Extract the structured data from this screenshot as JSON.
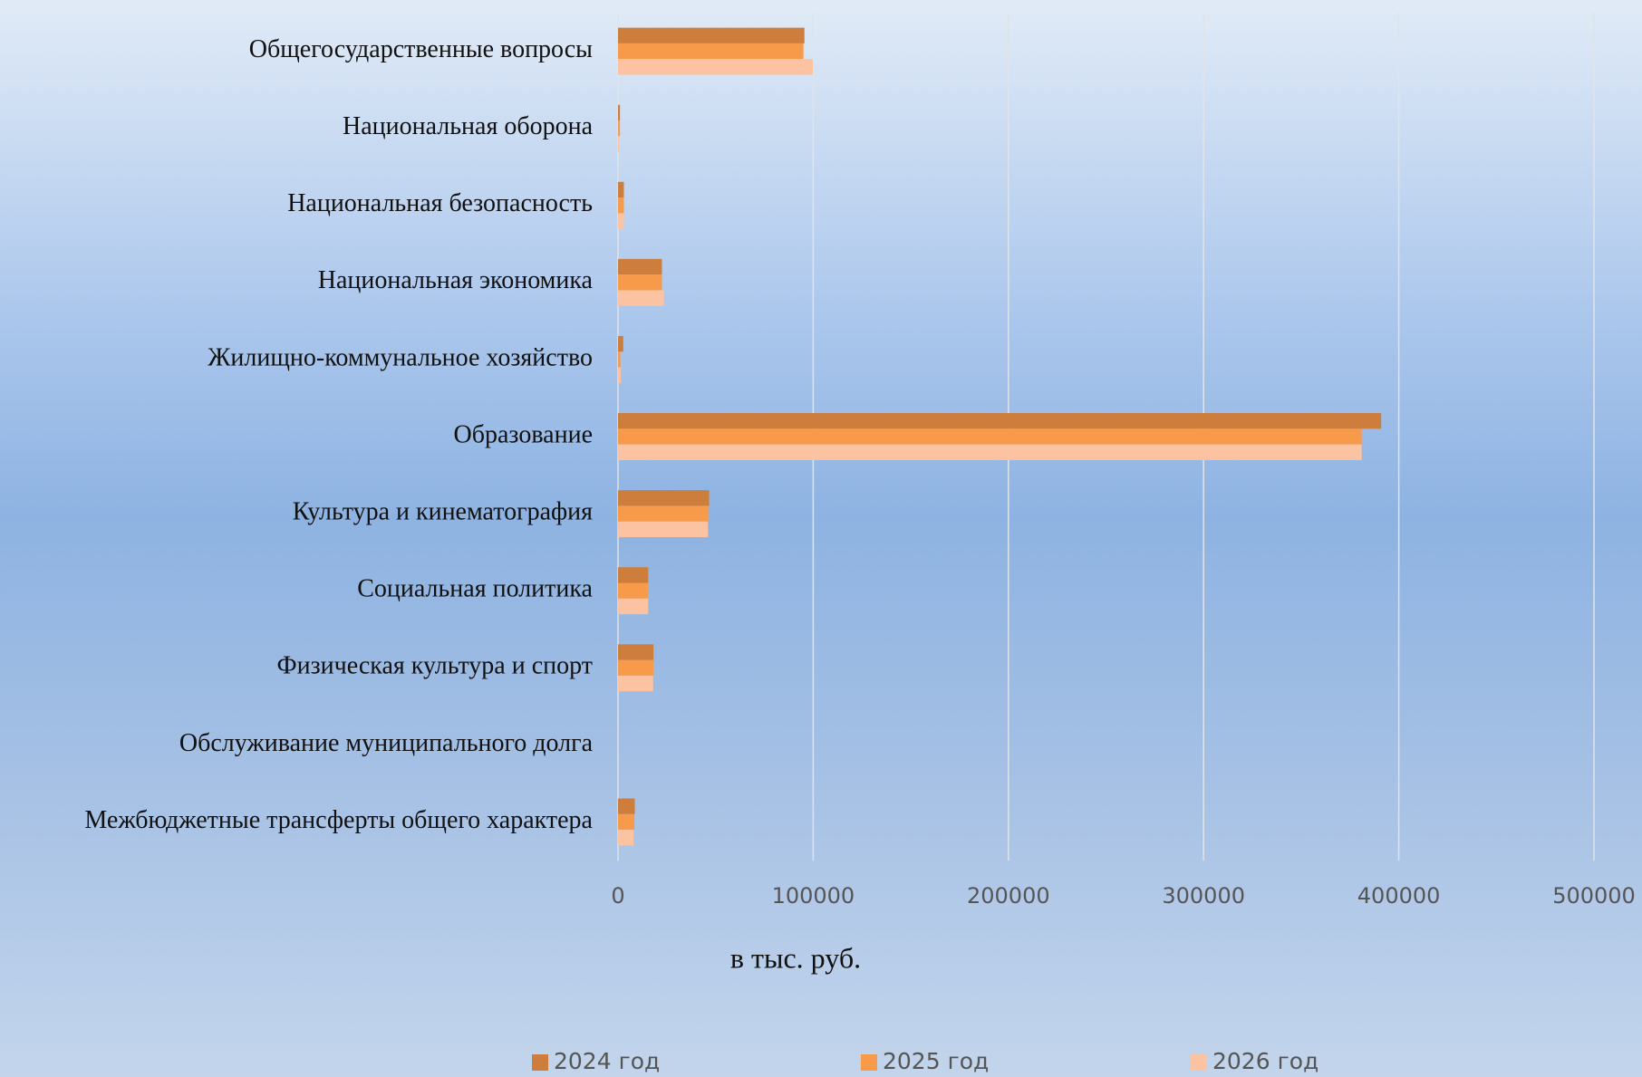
{
  "chart_data": {
    "type": "bar",
    "orientation": "horizontal",
    "categories": [
      "Общегосударственные вопросы",
      "Национальная оборона",
      "Национальная безопасность",
      "Национальная экономика",
      "Жилищно-коммунальное хозяйство",
      "Образование",
      "Культура и кинематография",
      "Социальная политика",
      "Физическая культура и спорт",
      "Обслуживание муниципального долга",
      "Межбюджетные трансферты общего характера"
    ],
    "series": [
      {
        "name": "2024 год",
        "color": "#cd7d3c",
        "values": [
          95500,
          1000,
          3000,
          22500,
          2700,
          391000,
          46700,
          15500,
          18200,
          0,
          8600
        ]
      },
      {
        "name": "2025 год",
        "color": "#f79a4a",
        "values": [
          95000,
          1000,
          3000,
          22500,
          1200,
          381000,
          46500,
          15500,
          18200,
          0,
          8400
        ]
      },
      {
        "name": "2026 год",
        "color": "#fbc3a1",
        "values": [
          99800,
          600,
          3000,
          23500,
          1500,
          381000,
          46100,
          15500,
          18000,
          0,
          8000
        ]
      }
    ],
    "xlabel": "в тыс. руб.",
    "xlim": [
      0,
      500000
    ],
    "xticks": [
      0,
      100000,
      200000,
      300000,
      400000,
      500000
    ],
    "grid": true,
    "legend": "bottom"
  }
}
